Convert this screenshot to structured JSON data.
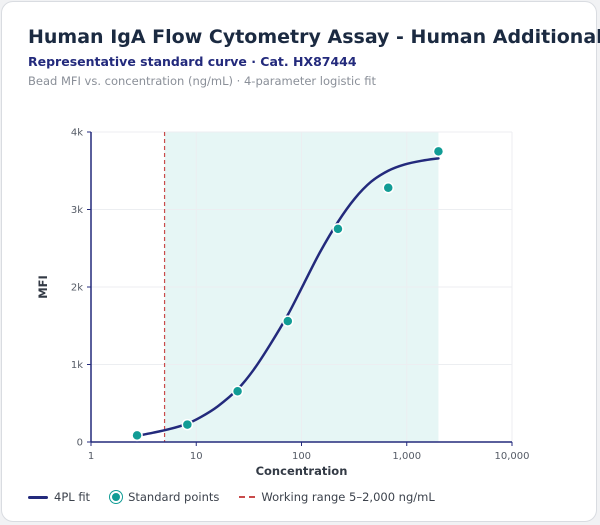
{
  "header": {
    "title": "Human IgA Flow Cytometry Assay - Human Additional",
    "subtitle": "Representative standard curve · Cat. HX87444",
    "caption": "Bead MFI vs. concentration (ng/mL) · 4-parameter logistic fit"
  },
  "legend": {
    "fit_label": "4PL fit",
    "points_label": "Standard points",
    "range_label": "Working range 5–2,000 ng/mL"
  },
  "colors": {
    "curve": "#232a7c",
    "points": "#119c95",
    "range_fill": "#e6f6f5",
    "range_line": "#c94b4b",
    "axis": "#232a7c",
    "grid": "#eceef1"
  },
  "chart_data": {
    "type": "scatter",
    "xlabel": "Concentration",
    "ylabel": "MFI",
    "x_scale": "log",
    "xlim": [
      1,
      10000
    ],
    "ylim": [
      0,
      4000
    ],
    "x_ticks": [
      1,
      10,
      100,
      1000,
      10000
    ],
    "x_tick_labels": [
      "1",
      "10",
      "100",
      "1,000",
      "10,000"
    ],
    "y_ticks": [
      0,
      1000,
      2000,
      3000,
      4000
    ],
    "y_tick_labels": [
      "0",
      "1k",
      "2k",
      "3k",
      "4k"
    ],
    "grid": true,
    "working_range": [
      5,
      2000
    ],
    "series": [
      {
        "name": "Standard points",
        "kind": "points",
        "x": [
          2.74,
          8.23,
          24.7,
          74.1,
          222,
          667,
          2000
        ],
        "y": [
          85,
          225,
          655,
          1560,
          2750,
          3280,
          3750
        ]
      },
      {
        "name": "4PL fit",
        "kind": "curve",
        "x": [
          2.74,
          3.9,
          5.5,
          8.0,
          11,
          16,
          24.7,
          35,
          50,
          74.1,
          105,
          150,
          222,
          320,
          460,
          667,
          950,
          1400,
          2000
        ],
        "y": [
          80,
          120,
          165,
          230,
          320,
          460,
          680,
          930,
          1250,
          1640,
          2040,
          2450,
          2840,
          3140,
          3360,
          3500,
          3580,
          3630,
          3660
        ]
      }
    ]
  }
}
